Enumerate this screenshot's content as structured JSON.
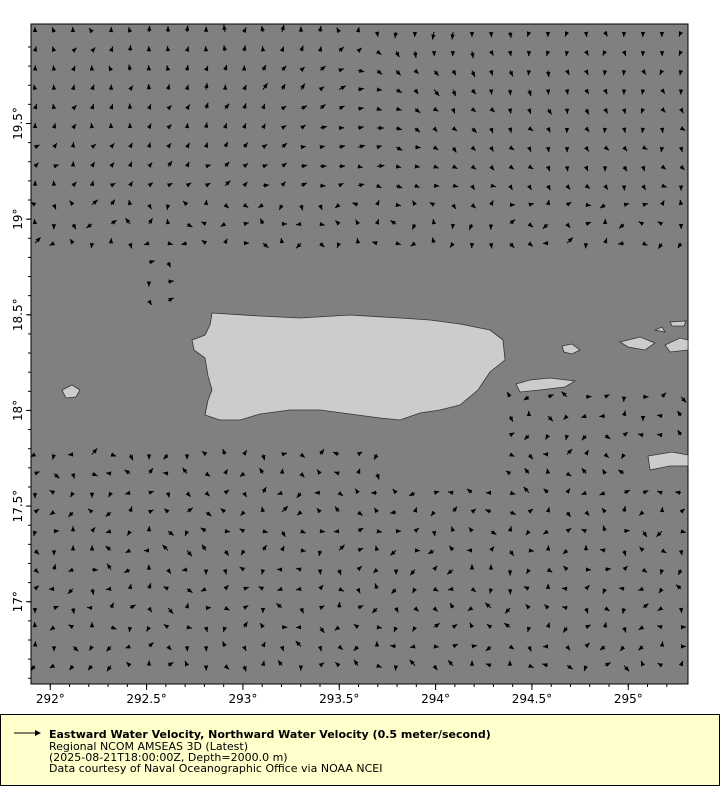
{
  "chart_data": {
    "type": "vector-field map",
    "xlim": [
      291.9,
      295.31
    ],
    "ylim": [
      16.57,
      20.02
    ],
    "x_ticks": [
      "292°",
      "292.5°",
      "293°",
      "293.5°",
      "294°",
      "294.5°",
      "295°"
    ],
    "x_tick_values": [
      292,
      292.5,
      293,
      293.5,
      294,
      294.5,
      295
    ],
    "y_ticks": [
      "19.5°",
      "19°",
      "18.5°",
      "18°",
      "17.5°",
      "17°"
    ],
    "y_tick_values": [
      19.5,
      19,
      18.5,
      18,
      17.5,
      17
    ],
    "reference_vector": "0.5 meter/second",
    "colors": {
      "ocean": "#808080",
      "land": "#cccccc",
      "arrow": "#000000",
      "legend_bg": "#ffffcc"
    }
  },
  "legend": {
    "title": "Eastward Water Velocity, Northward Water Velocity (0.5 meter/second)",
    "line1": "Regional NCOM AMSEAS 3D (Latest)",
    "line2": "(2025-08-21T18:00:00Z, Depth=2000.0 m)",
    "line3": "Data courtesy of Naval Oceanographic Office via NOAA NCEI"
  }
}
